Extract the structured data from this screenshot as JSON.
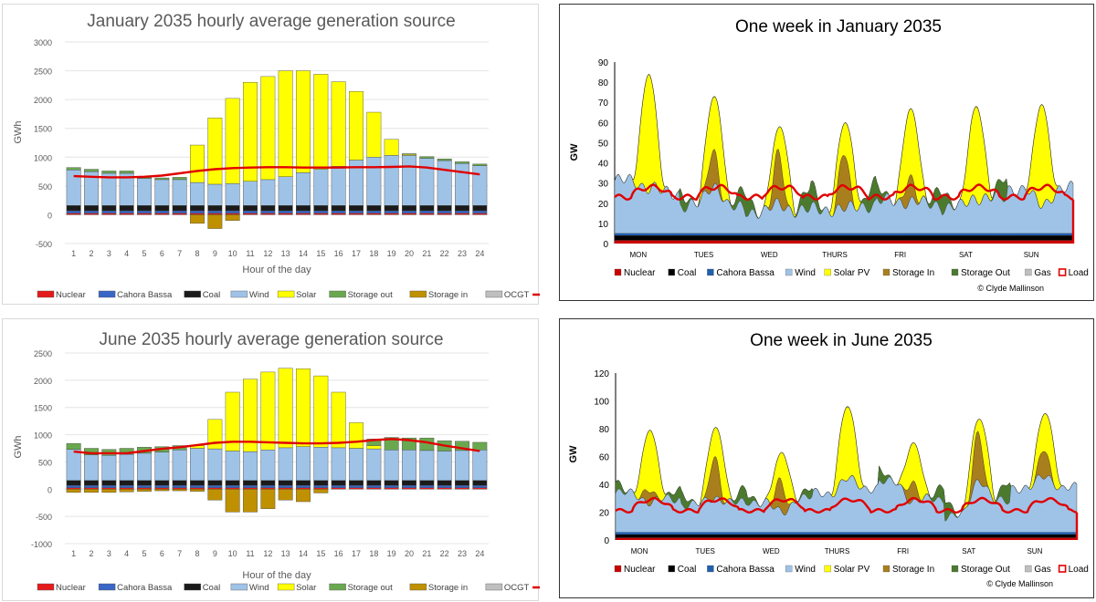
{
  "colors": {
    "nuclear": "#e41a1c",
    "cahora": "#3a66c6",
    "coal": "#1a1a1a",
    "wind": "#9fc3e7",
    "solar": "#ffff00",
    "storage_out": "#6aa84f",
    "storage_in": "#bf9000",
    "ocgt": "#bfbfbf",
    "gas": "#bfbfbf",
    "load": "#e00000",
    "weekly_storage_in": "#a97f1e",
    "weekly_storage_out": "#4b7a2e",
    "weekly_cahora": "#1f5fae"
  },
  "chart_data": [
    {
      "id": "jan-hourly",
      "type": "bar",
      "title": "January 2035 hourly average generation source",
      "xlabel": "Hour of the day",
      "ylabel": "GWh",
      "ylim": [
        -500,
        3000
      ],
      "yticks": [
        "3000",
        "2500",
        "2000",
        "1500",
        "1000",
        "500",
        "0",
        "-500"
      ],
      "categories": [
        "1",
        "2",
        "3",
        "4",
        "5",
        "6",
        "7",
        "8",
        "9",
        "10",
        "11",
        "12",
        "13",
        "14",
        "15",
        "16",
        "17",
        "18",
        "19",
        "20",
        "21",
        "22",
        "23",
        "24"
      ],
      "series": [
        {
          "name": "Nuclear",
          "key": "nuclear",
          "values": [
            25,
            25,
            25,
            25,
            25,
            25,
            25,
            25,
            25,
            25,
            25,
            25,
            25,
            25,
            25,
            25,
            25,
            25,
            25,
            25,
            25,
            25,
            25,
            25
          ]
        },
        {
          "name": "Cahora Bassa",
          "key": "cahora",
          "values": [
            45,
            45,
            45,
            45,
            45,
            45,
            45,
            45,
            45,
            45,
            45,
            45,
            45,
            45,
            45,
            45,
            45,
            45,
            45,
            45,
            45,
            45,
            45,
            45
          ]
        },
        {
          "name": "Coal",
          "key": "coal",
          "values": [
            90,
            90,
            90,
            90,
            90,
            90,
            90,
            90,
            90,
            90,
            90,
            90,
            90,
            90,
            90,
            90,
            90,
            90,
            90,
            90,
            90,
            90,
            90,
            90
          ]
        },
        {
          "name": "Wind",
          "key": "wind",
          "values": [
            620,
            590,
            560,
            560,
            470,
            450,
            450,
            400,
            370,
            380,
            420,
            450,
            500,
            570,
            630,
            680,
            790,
            840,
            870,
            870,
            820,
            780,
            730,
            690
          ]
        },
        {
          "name": "Solar",
          "key": "solar",
          "values": [
            0,
            0,
            0,
            0,
            0,
            0,
            0,
            650,
            1150,
            1480,
            1720,
            1790,
            1840,
            1770,
            1650,
            1470,
            1190,
            780,
            280,
            20,
            0,
            0,
            0,
            0
          ]
        },
        {
          "name": "Storage out",
          "key": "storage_out",
          "values": [
            40,
            40,
            40,
            40,
            40,
            30,
            40,
            0,
            0,
            0,
            0,
            0,
            0,
            0,
            0,
            0,
            0,
            0,
            0,
            10,
            30,
            30,
            30,
            30
          ]
        },
        {
          "name": "Storage in",
          "key": "storage_in",
          "values": [
            0,
            0,
            0,
            0,
            0,
            0,
            0,
            -150,
            -240,
            -100,
            0,
            0,
            0,
            0,
            0,
            0,
            0,
            0,
            0,
            0,
            0,
            0,
            0,
            0
          ]
        },
        {
          "name": "OCGT",
          "key": "ocgt",
          "values": [
            0,
            0,
            0,
            0,
            0,
            0,
            0,
            0,
            0,
            0,
            0,
            0,
            0,
            0,
            0,
            0,
            0,
            0,
            0,
            0,
            0,
            0,
            0,
            0
          ]
        }
      ],
      "load": [
        670,
        660,
        650,
        650,
        660,
        680,
        720,
        760,
        790,
        810,
        820,
        825,
        825,
        820,
        820,
        820,
        825,
        825,
        830,
        840,
        820,
        780,
        740,
        700
      ],
      "legend": [
        "Nuclear",
        "Cahora Bassa",
        "Coal",
        "Wind",
        "Solar",
        "Storage out",
        "Storage in",
        "OCGT",
        "Load"
      ],
      "legend_position": "bottom"
    },
    {
      "id": "jan-week",
      "type": "area",
      "title": "One week in January 2035",
      "ylabel": "GW",
      "ylim": [
        0,
        90
      ],
      "yticks": [
        "90",
        "80",
        "70",
        "60",
        "50",
        "40",
        "30",
        "20",
        "10",
        "0"
      ],
      "x_day_labels": [
        "MON",
        "TUES",
        "WED",
        "THURS",
        "FRI",
        "SAT",
        "SUN"
      ],
      "base_gw": {
        "nuclear": 1.5,
        "coal": 2.5,
        "cahora": 1.0
      },
      "days": [
        {
          "wind_night": 26,
          "wind_day": 23,
          "solar_peak": 84,
          "storage_out": 0,
          "storage_in": 0
        },
        {
          "wind_night": 14,
          "wind_day": 24,
          "solar_peak": 73,
          "storage_out": 8,
          "storage_in": 18
        },
        {
          "wind_night": 11,
          "wind_day": 14,
          "solar_peak": 58,
          "storage_out": 10,
          "storage_in": 25
        },
        {
          "wind_night": 12,
          "wind_day": 12,
          "solar_peak": 60,
          "storage_out": 12,
          "storage_in": 28
        },
        {
          "wind_night": 16,
          "wind_day": 16,
          "solar_peak": 67,
          "storage_out": 8,
          "storage_in": 12
        },
        {
          "wind_night": 13,
          "wind_day": 18,
          "solar_peak": 68,
          "storage_out": 10,
          "storage_in": 0
        },
        {
          "wind_night": 22,
          "wind_day": 14,
          "solar_peak": 69,
          "storage_out": 0,
          "storage_in": 0
        }
      ],
      "load_night": 23,
      "load_day": 28,
      "legend": [
        "Nuclear",
        "Coal",
        "Cahora Bassa",
        "Wind",
        "Solar PV",
        "Storage In",
        "Storage Out",
        "Gas",
        "Load"
      ],
      "legend_position": "bottom",
      "credit": "© Clyde Mallinson"
    },
    {
      "id": "jun-hourly",
      "type": "bar",
      "title": "June 2035 hourly average generation source",
      "xlabel": "Hour of the day",
      "ylabel": "GWh",
      "ylim": [
        -1000,
        2500
      ],
      "yticks": [
        "2500",
        "2000",
        "1500",
        "1000",
        "500",
        "0",
        "-500",
        "-1000"
      ],
      "categories": [
        "1",
        "2",
        "3",
        "4",
        "5",
        "6",
        "7",
        "8",
        "9",
        "10",
        "11",
        "12",
        "13",
        "14",
        "15",
        "16",
        "17",
        "18",
        "19",
        "20",
        "21",
        "22",
        "23",
        "24"
      ],
      "series": [
        {
          "name": "Nuclear",
          "key": "nuclear",
          "values": [
            25,
            25,
            25,
            25,
            25,
            25,
            25,
            25,
            25,
            25,
            25,
            25,
            25,
            25,
            25,
            25,
            25,
            25,
            25,
            25,
            25,
            25,
            25,
            25
          ]
        },
        {
          "name": "Cahora Bassa",
          "key": "cahora",
          "values": [
            45,
            45,
            45,
            45,
            45,
            45,
            45,
            45,
            45,
            45,
            45,
            45,
            45,
            45,
            45,
            45,
            45,
            45,
            45,
            45,
            45,
            45,
            45,
            45
          ]
        },
        {
          "name": "Coal",
          "key": "coal",
          "values": [
            90,
            90,
            90,
            90,
            90,
            90,
            90,
            90,
            90,
            90,
            90,
            90,
            90,
            90,
            90,
            90,
            90,
            90,
            90,
            90,
            90,
            90,
            90,
            90
          ]
        },
        {
          "name": "Wind",
          "key": "wind",
          "values": [
            570,
            470,
            460,
            480,
            500,
            520,
            560,
            590,
            580,
            540,
            530,
            560,
            600,
            620,
            610,
            600,
            590,
            580,
            560,
            560,
            550,
            540,
            550,
            560
          ]
        },
        {
          "name": "Solar",
          "key": "solar",
          "values": [
            0,
            0,
            0,
            0,
            0,
            0,
            0,
            50,
            540,
            1080,
            1330,
            1430,
            1460,
            1430,
            1310,
            1020,
            470,
            60,
            0,
            0,
            0,
            0,
            0,
            0
          ]
        },
        {
          "name": "Storage out",
          "key": "storage_out",
          "values": [
            110,
            120,
            110,
            110,
            110,
            100,
            80,
            0,
            0,
            0,
            0,
            0,
            0,
            0,
            0,
            0,
            0,
            120,
            230,
            220,
            230,
            190,
            170,
            140
          ]
        },
        {
          "name": "Storage in",
          "key": "storage_in",
          "values": [
            -60,
            -60,
            -60,
            -50,
            -40,
            -30,
            -30,
            -40,
            -200,
            -420,
            -420,
            -360,
            -200,
            -230,
            -70,
            0,
            0,
            0,
            0,
            0,
            0,
            0,
            0,
            0
          ]
        },
        {
          "name": "OCGT",
          "key": "ocgt",
          "values": [
            0,
            0,
            0,
            0,
            0,
            0,
            0,
            0,
            0,
            0,
            0,
            0,
            0,
            0,
            0,
            0,
            0,
            0,
            0,
            0,
            0,
            0,
            0,
            0
          ]
        }
      ],
      "load": [
        690,
        660,
        660,
        660,
        700,
        740,
        770,
        810,
        850,
        870,
        870,
        860,
        850,
        840,
        840,
        850,
        870,
        900,
        920,
        900,
        860,
        800,
        750,
        700
      ],
      "legend": [
        "Nuclear",
        "Cahora Bassa",
        "Coal",
        "Wind",
        "Solar",
        "Storage out",
        "Storage in",
        "OCGT",
        "Load"
      ],
      "legend_position": "bottom"
    },
    {
      "id": "jun-week",
      "type": "area",
      "title": "One week in June 2035",
      "ylabel": "GW",
      "ylim": [
        0,
        120
      ],
      "yticks": [
        "120",
        "100",
        "80",
        "60",
        "40",
        "20",
        "0"
      ],
      "x_day_labels": [
        "MON",
        "TUES",
        "WED",
        "THURS",
        "FRI",
        "SAT",
        "SUN"
      ],
      "base_gw": {
        "nuclear": 1.5,
        "coal": 2.5,
        "cahora": 1.5
      },
      "days": [
        {
          "wind_night": 28,
          "wind_day": 22,
          "solar_peak": 79,
          "storage_out": 8,
          "storage_in": 10
        },
        {
          "wind_night": 20,
          "wind_day": 25,
          "solar_peak": 81,
          "storage_out": 10,
          "storage_in": 30
        },
        {
          "wind_night": 22,
          "wind_day": 14,
          "solar_peak": 63,
          "storage_out": 6,
          "storage_in": 22
        },
        {
          "wind_night": 28,
          "wind_day": 38,
          "solar_peak": 96,
          "storage_out": 0,
          "storage_in": 0
        },
        {
          "wind_night": 36,
          "wind_day": 22,
          "solar_peak": 70,
          "storage_out": 10,
          "storage_in": 14
        },
        {
          "wind_night": 12,
          "wind_day": 38,
          "solar_peak": 87,
          "storage_out": 14,
          "storage_in": 35
        },
        {
          "wind_night": 32,
          "wind_day": 40,
          "solar_peak": 91,
          "storage_out": 0,
          "storage_in": 20
        }
      ],
      "load_night": 21,
      "load_day": 29,
      "legend": [
        "Nuclear",
        "Coal",
        "Cahora Bassa",
        "Wind",
        "Solar PV",
        "Storage In",
        "Storage Out",
        "Gas",
        "Load"
      ],
      "legend_position": "bottom",
      "credit": "© Clyde Mallinson"
    }
  ]
}
